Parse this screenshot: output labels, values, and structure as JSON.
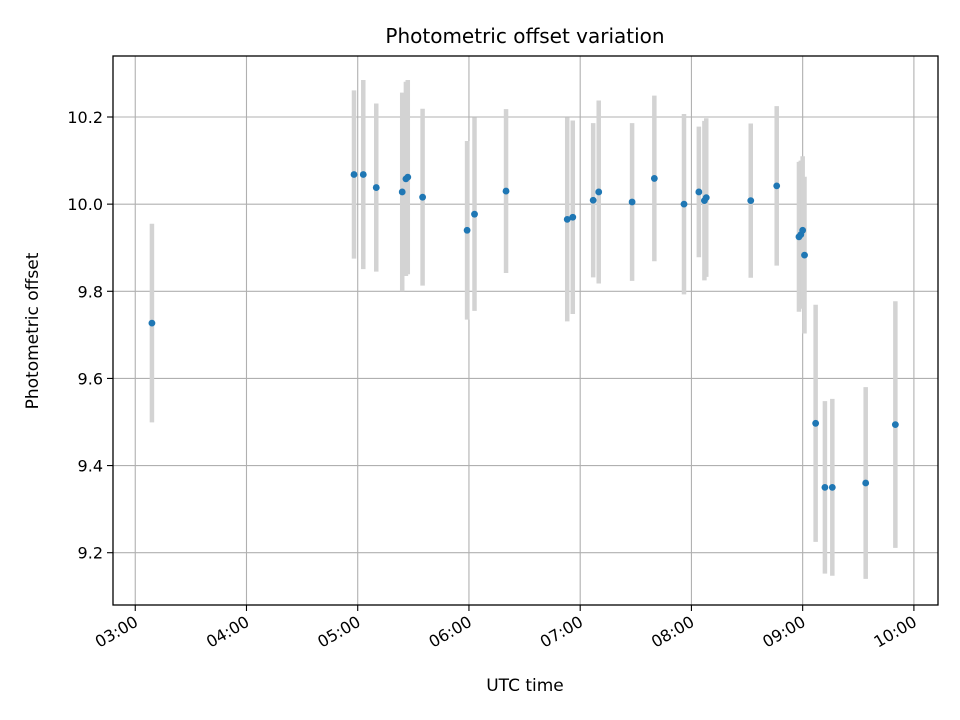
{
  "chart_data": {
    "type": "scatter",
    "title": "Photometric offset variation",
    "xlabel": "UTC time",
    "ylabel": "Photometric offset",
    "x_ticks": [
      "03:00",
      "04:00",
      "05:00",
      "06:00",
      "07:00",
      "08:00",
      "09:00",
      "10:00"
    ],
    "y_ticks": [
      "9.2",
      "9.4",
      "9.6",
      "9.8",
      "10.0",
      "10.2"
    ],
    "xlim": [
      "02:48",
      "10:13"
    ],
    "ylim": [
      9.08,
      10.34
    ],
    "grid": true,
    "marker_color": "#1f77b4",
    "errorbar_color": "#d3d3d3",
    "points": [
      {
        "x": "03:09",
        "y": 9.727,
        "err": 0.228
      },
      {
        "x": "04:58",
        "y": 10.068,
        "err": 0.193
      },
      {
        "x": "05:03",
        "y": 10.068,
        "err": 0.217
      },
      {
        "x": "05:10",
        "y": 10.038,
        "err": 0.193
      },
      {
        "x": "05:24",
        "y": 10.028,
        "err": 0.228
      },
      {
        "x": "05:26",
        "y": 10.058,
        "err": 0.223
      },
      {
        "x": "05:27",
        "y": 10.062,
        "err": 0.223
      },
      {
        "x": "05:35",
        "y": 10.016,
        "err": 0.203
      },
      {
        "x": "05:59",
        "y": 9.94,
        "err": 0.205
      },
      {
        "x": "06:03",
        "y": 9.977,
        "err": 0.222
      },
      {
        "x": "06:20",
        "y": 10.03,
        "err": 0.188
      },
      {
        "x": "06:53",
        "y": 9.965,
        "err": 0.234
      },
      {
        "x": "06:56",
        "y": 9.97,
        "err": 0.222
      },
      {
        "x": "07:07",
        "y": 10.009,
        "err": 0.177
      },
      {
        "x": "07:10",
        "y": 10.028,
        "err": 0.21
      },
      {
        "x": "07:28",
        "y": 10.005,
        "err": 0.181
      },
      {
        "x": "07:40",
        "y": 10.059,
        "err": 0.19
      },
      {
        "x": "07:56",
        "y": 10.0,
        "err": 0.207
      },
      {
        "x": "08:04",
        "y": 10.028,
        "err": 0.15
      },
      {
        "x": "08:07",
        "y": 10.008,
        "err": 0.183
      },
      {
        "x": "08:08",
        "y": 10.015,
        "err": 0.182
      },
      {
        "x": "08:32",
        "y": 10.008,
        "err": 0.177
      },
      {
        "x": "08:46",
        "y": 10.042,
        "err": 0.183
      },
      {
        "x": "08:58",
        "y": 9.925,
        "err": 0.172
      },
      {
        "x": "08:59",
        "y": 9.93,
        "err": 0.17
      },
      {
        "x": "09:00",
        "y": 9.94,
        "err": 0.17
      },
      {
        "x": "09:01",
        "y": 9.883,
        "err": 0.18
      },
      {
        "x": "09:07",
        "y": 9.497,
        "err": 0.272
      },
      {
        "x": "09:12",
        "y": 9.35,
        "err": 0.198
      },
      {
        "x": "09:16",
        "y": 9.35,
        "err": 0.203
      },
      {
        "x": "09:34",
        "y": 9.36,
        "err": 0.22
      },
      {
        "x": "09:50",
        "y": 9.494,
        "err": 0.283
      }
    ]
  }
}
